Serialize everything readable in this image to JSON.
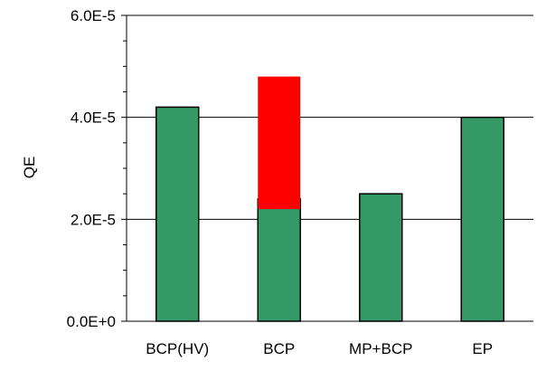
{
  "chart_data": {
    "type": "bar",
    "title": "",
    "xlabel": "",
    "ylabel": "QE",
    "categories": [
      "BCP(HV)",
      "BCP",
      "MP+BCP",
      "EP"
    ],
    "values": [
      4.2e-05,
      2.4e-05,
      2.5e-05,
      4e-05
    ],
    "ylim": [
      0,
      6e-05
    ],
    "major_ticks": [
      0,
      2e-05,
      4e-05,
      6e-05
    ],
    "y_tick_labels": [
      "0.0E+0",
      "2.0E-5",
      "4.0E-5",
      "6.0E-5"
    ],
    "minor_tick_step": 5e-06,
    "grid": "horizontal at major ticks",
    "legend": "none",
    "overlay_range": {
      "category": "BCP",
      "low": 2.2e-05,
      "high": 4.8e-05,
      "color": "#ff0000"
    },
    "colors": {
      "bar_fill": "#339966",
      "bar_stroke": "#000000",
      "gridline": "#000000",
      "axis": "#000000"
    }
  }
}
